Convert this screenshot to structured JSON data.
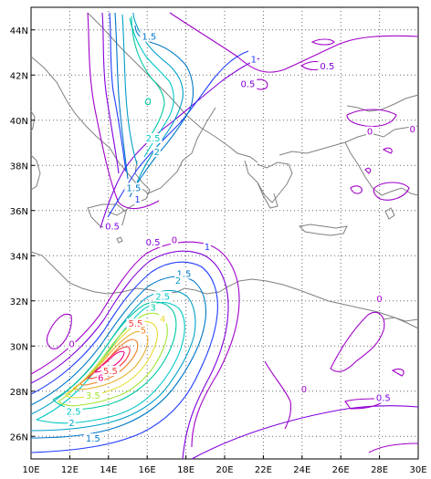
{
  "map": {
    "extent": {
      "lon": [
        10,
        30
      ],
      "lat": [
        25,
        45
      ]
    },
    "grid": "dotted",
    "lon_ticks": [
      "10E",
      "12E",
      "14E",
      "16E",
      "18E",
      "20E",
      "22E",
      "24E",
      "26E",
      "28E",
      "30E"
    ],
    "lat_ticks": [
      "26N",
      "28N",
      "30N",
      "32N",
      "34N",
      "36N",
      "38N",
      "40N",
      "42N",
      "44N"
    ],
    "coastline_color": "#808080",
    "contour_colors": {
      "0": "#a000c8",
      "0.5": "#8200dc",
      "1": "#1e3cff",
      "1.5": "#0078c8",
      "2": "#00a0c8",
      "2.5": "#00c8c8",
      "3": "#00c8a0",
      "3.5": "#a0e632",
      "4": "#e6dc32",
      "4.5": "#e6af2d",
      "5": "#f08228",
      "5.5": "#fa3c3c",
      "6": "#f00082"
    },
    "labels": [
      {
        "text": "1.5",
        "lon": 16.1,
        "lat": 43.6
      },
      {
        "text": "0.5",
        "lon": 25.3,
        "lat": 42.3
      },
      {
        "text": "1",
        "lon": 21.5,
        "lat": 42.6
      },
      {
        "text": "0.5",
        "lon": 21.2,
        "lat": 41.5
      },
      {
        "text": "0",
        "lon": 27.5,
        "lat": 39.4
      },
      {
        "text": "0",
        "lon": 29.7,
        "lat": 39.5
      },
      {
        "text": "2.5",
        "lon": 16.3,
        "lat": 39.1
      },
      {
        "text": "2",
        "lon": 16.5,
        "lat": 38.5
      },
      {
        "text": "1.5",
        "lon": 15.3,
        "lat": 36.9
      },
      {
        "text": "1",
        "lon": 15.5,
        "lat": 36.4
      },
      {
        "text": "0.5",
        "lon": 14.2,
        "lat": 35.2
      },
      {
        "text": "0.5",
        "lon": 16.3,
        "lat": 34.5
      },
      {
        "text": "0",
        "lon": 17.4,
        "lat": 34.6
      },
      {
        "text": "1",
        "lon": 19.1,
        "lat": 34.3
      },
      {
        "text": "1.5",
        "lon": 17.9,
        "lat": 33.1
      },
      {
        "text": "2",
        "lon": 17.6,
        "lat": 32.8
      },
      {
        "text": "2.5",
        "lon": 16.8,
        "lat": 32.1
      },
      {
        "text": "3",
        "lon": 16.3,
        "lat": 31.6
      },
      {
        "text": "4",
        "lon": 16.8,
        "lat": 31.1
      },
      {
        "text": "5.5",
        "lon": 15.4,
        "lat": 30.9
      },
      {
        "text": "5",
        "lon": 15.8,
        "lat": 30.6
      },
      {
        "text": "0",
        "lon": 12.1,
        "lat": 30.0
      },
      {
        "text": "0",
        "lon": 28.0,
        "lat": 32.0
      },
      {
        "text": "5.5",
        "lon": 14.1,
        "lat": 28.8
      },
      {
        "text": "6",
        "lon": 13.6,
        "lat": 28.5
      },
      {
        "text": "3.5",
        "lon": 13.2,
        "lat": 27.7
      },
      {
        "text": "2.5",
        "lon": 12.2,
        "lat": 27.0
      },
      {
        "text": "2",
        "lon": 12.1,
        "lat": 26.5
      },
      {
        "text": "1.5",
        "lon": 13.2,
        "lat": 25.8
      },
      {
        "text": "0",
        "lon": 24.1,
        "lat": 28.0
      },
      {
        "text": "0.5",
        "lon": 28.2,
        "lat": 27.6
      }
    ]
  }
}
